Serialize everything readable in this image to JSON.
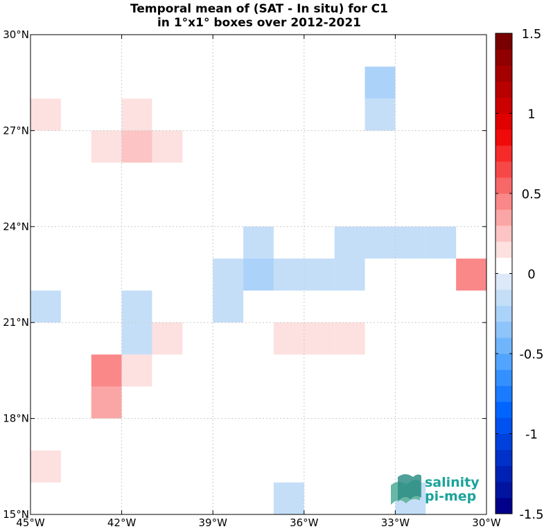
{
  "chart_data": {
    "type": "heatmap",
    "title": [
      "Temporal mean of (SAT - In situ) for C1",
      "in 1°x1° boxes over 2012-2021"
    ],
    "x_axis": {
      "range": [
        -45,
        -30
      ],
      "ticks": [
        -45,
        -42,
        -39,
        -36,
        -33,
        -30
      ],
      "tick_labels": [
        "45°W",
        "42°W",
        "39°W",
        "36°W",
        "33°W",
        "30°W"
      ]
    },
    "y_axis": {
      "range": [
        15,
        30
      ],
      "ticks": [
        15,
        18,
        21,
        24,
        27,
        30
      ],
      "tick_labels": [
        "15°N",
        "18°N",
        "21°N",
        "24°N",
        "27°N",
        "30°N"
      ]
    },
    "grid": true,
    "colorbar": {
      "range": [
        -1.5,
        1.5
      ],
      "levels": 30,
      "ticks": [
        1.5,
        1,
        0.5,
        0,
        -0.5,
        -1,
        -1.5
      ],
      "tick_labels": [
        "1.5",
        "1",
        "0.5",
        "0",
        "-0.5",
        "-1",
        "-1.5"
      ],
      "colors": [
        "#00008a",
        "#0014a0",
        "#0022b4",
        "#0031c8",
        "#0041dc",
        "#0052f0",
        "#0064ff",
        "#1a7bff",
        "#3590ff",
        "#52a4ff",
        "#70b5fb",
        "#8ec4fa",
        "#abd2f9",
        "#c4def8",
        "#dde9f8",
        "#ffffff",
        "#fde0e0",
        "#fcc4c4",
        "#fba6a6",
        "#fa8888",
        "#f76868",
        "#f74848",
        "#f72a2a",
        "#f00a0a",
        "#e00000",
        "#cc0000",
        "#b80000",
        "#a40000",
        "#900000",
        "#780000"
      ],
      "center_color": "#ffffff"
    },
    "cells": [
      {
        "lon": -33.5,
        "lat": 28.5,
        "value": -0.25
      },
      {
        "lon": -33.5,
        "lat": 27.5,
        "value": -0.1
      },
      {
        "lon": -44.5,
        "lat": 27.5,
        "value": 0.15
      },
      {
        "lon": -41.5,
        "lat": 27.5,
        "value": 0.15
      },
      {
        "lon": -42.5,
        "lat": 26.5,
        "value": 0.15
      },
      {
        "lon": -41.5,
        "lat": 26.5,
        "value": 0.25
      },
      {
        "lon": -40.5,
        "lat": 26.5,
        "value": 0.15
      },
      {
        "lon": -37.5,
        "lat": 23.5,
        "value": -0.15
      },
      {
        "lon": -34.5,
        "lat": 23.5,
        "value": -0.15
      },
      {
        "lon": -33.5,
        "lat": 23.5,
        "value": -0.15
      },
      {
        "lon": -32.5,
        "lat": 23.5,
        "value": -0.15
      },
      {
        "lon": -31.5,
        "lat": 23.5,
        "value": -0.15
      },
      {
        "lon": -38.5,
        "lat": 22.5,
        "value": -0.15
      },
      {
        "lon": -37.5,
        "lat": 22.5,
        "value": -0.25
      },
      {
        "lon": -36.5,
        "lat": 22.5,
        "value": -0.15
      },
      {
        "lon": -35.5,
        "lat": 22.5,
        "value": -0.15
      },
      {
        "lon": -34.5,
        "lat": 22.5,
        "value": -0.15
      },
      {
        "lon": -30.5,
        "lat": 22.5,
        "value": 0.4
      },
      {
        "lon": -44.5,
        "lat": 21.5,
        "value": -0.15
      },
      {
        "lon": -41.5,
        "lat": 21.5,
        "value": -0.15
      },
      {
        "lon": -38.5,
        "lat": 21.5,
        "value": -0.15
      },
      {
        "lon": -41.5,
        "lat": 20.5,
        "value": -0.15
      },
      {
        "lon": -40.5,
        "lat": 20.5,
        "value": 0.15
      },
      {
        "lon": -36.5,
        "lat": 20.5,
        "value": 0.15
      },
      {
        "lon": -35.5,
        "lat": 20.5,
        "value": 0.15
      },
      {
        "lon": -34.5,
        "lat": 20.5,
        "value": 0.15
      },
      {
        "lon": -42.5,
        "lat": 19.5,
        "value": 0.45
      },
      {
        "lon": -41.5,
        "lat": 19.5,
        "value": 0.15
      },
      {
        "lon": -42.5,
        "lat": 18.5,
        "value": 0.3
      },
      {
        "lon": -44.5,
        "lat": 16.5,
        "value": 0.15
      },
      {
        "lon": -36.5,
        "lat": 15.5,
        "value": -0.15
      },
      {
        "lon": -32.5,
        "lat": 15.5,
        "value": -0.15
      }
    ]
  },
  "logo": {
    "line1": "salinity",
    "line2": "pi-mep",
    "color": "#1aa39a"
  }
}
